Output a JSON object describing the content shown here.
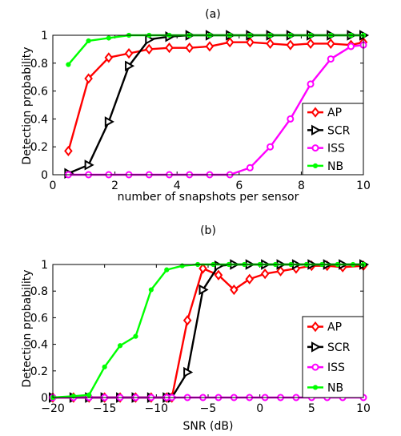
{
  "chart_data": [
    {
      "type": "line",
      "title": "(a)",
      "xlabel": "number of snapshots per sensor",
      "ylabel": "Detection probability",
      "xlim": [
        0,
        10
      ],
      "ylim": [
        0,
        1
      ],
      "xticks": [
        0,
        2,
        4,
        6,
        8,
        10
      ],
      "yticks": [
        0,
        0.2,
        0.4,
        0.6,
        0.8,
        1
      ],
      "xtick_labels": [
        "0",
        "2",
        "4",
        "6",
        "8",
        "10"
      ],
      "ytick_labels": [
        "0",
        "0.2",
        "0.4",
        "0.6",
        "0.8",
        "1"
      ],
      "legend_position": "right",
      "series": [
        {
          "name": "AP",
          "color": "#ff0000",
          "marker": "diamond",
          "x": [
            0.5,
            1.15,
            1.8,
            2.45,
            3.1,
            3.75,
            4.4,
            5.05,
            5.7,
            6.35,
            7.0,
            7.65,
            8.3,
            8.95,
            9.6,
            10
          ],
          "y": [
            0.17,
            0.69,
            0.84,
            0.87,
            0.9,
            0.91,
            0.91,
            0.92,
            0.95,
            0.95,
            0.94,
            0.93,
            0.94,
            0.94,
            0.93,
            0.95
          ]
        },
        {
          "name": "SCR",
          "color": "#000000",
          "marker": "triangle-right",
          "x": [
            0.5,
            1.15,
            1.8,
            2.45,
            3.1,
            3.75,
            4.4,
            5.05,
            5.7,
            6.35,
            7.0,
            7.65,
            8.3,
            8.95,
            9.6,
            10
          ],
          "y": [
            0.01,
            0.07,
            0.38,
            0.78,
            0.97,
            0.99,
            1,
            1,
            1,
            1,
            1,
            1,
            1,
            1,
            1,
            1
          ]
        },
        {
          "name": "ISS",
          "color": "#ff00ff",
          "marker": "circle",
          "x": [
            0.5,
            1.15,
            1.8,
            2.45,
            3.1,
            3.75,
            4.4,
            5.05,
            5.7,
            6.35,
            7.0,
            7.65,
            8.3,
            8.95,
            9.6,
            10
          ],
          "y": [
            0,
            0,
            0,
            0,
            0,
            0,
            0,
            0,
            0,
            0.05,
            0.2,
            0.4,
            0.65,
            0.83,
            0.92,
            0.93
          ]
        },
        {
          "name": "NB",
          "color": "#00ff00",
          "marker": "dot",
          "x": [
            0.5,
            1.15,
            1.8,
            2.45,
            3.1,
            3.75,
            4.4,
            5.05,
            5.7,
            6.35,
            7.0,
            7.65,
            8.3,
            8.95,
            9.6,
            10
          ],
          "y": [
            0.79,
            0.96,
            0.98,
            1,
            1,
            1,
            1,
            1,
            1,
            1,
            1,
            1,
            1,
            1,
            1,
            1
          ]
        }
      ]
    },
    {
      "type": "line",
      "title": "(b)",
      "xlabel": "SNR (dB)",
      "ylabel": "Detection probability",
      "xlim": [
        -20,
        10
      ],
      "ylim": [
        0,
        1
      ],
      "xticks": [
        -20,
        -15,
        -10,
        -5,
        0,
        5,
        10
      ],
      "yticks": [
        0,
        0.2,
        0.4,
        0.6,
        0.8,
        1
      ],
      "xtick_labels": [
        "−20",
        "−15",
        "−10",
        "−5",
        "0",
        "5",
        "10"
      ],
      "ytick_labels": [
        "0",
        "0.2",
        "0.4",
        "0.6",
        "0.8",
        "1"
      ],
      "legend_position": "bottom-right",
      "series": [
        {
          "name": "AP",
          "color": "#ff0000",
          "marker": "diamond",
          "x": [
            -20,
            -18,
            -16.5,
            -15,
            -13.5,
            -12,
            -10.5,
            -9,
            -8.5,
            -7,
            -5.5,
            -4,
            -2.5,
            -1,
            0.5,
            2,
            3.5,
            5,
            6.5,
            8,
            10
          ],
          "y": [
            0,
            0,
            0,
            0,
            0,
            0,
            0,
            0,
            0,
            0.58,
            0.97,
            0.92,
            0.81,
            0.89,
            0.93,
            0.95,
            0.97,
            0.99,
            0.99,
            0.98,
            0.99
          ]
        },
        {
          "name": "SCR",
          "color": "#000000",
          "marker": "triangle-right",
          "x": [
            -20,
            -18,
            -16.5,
            -15,
            -13.5,
            -12,
            -10.5,
            -9,
            -8.5,
            -7,
            -5.5,
            -4,
            -2.5,
            -1,
            0.5,
            2,
            3.5,
            5,
            6.5,
            8,
            10
          ],
          "y": [
            0,
            0,
            0,
            0,
            0,
            0,
            0,
            0,
            0,
            0.19,
            0.81,
            0.99,
            1,
            1,
            1,
            1,
            1,
            1,
            1,
            1,
            1
          ]
        },
        {
          "name": "ISS",
          "color": "#ff00ff",
          "marker": "circle",
          "x": [
            -20,
            -18,
            -16.5,
            -15,
            -13.5,
            -12,
            -10.5,
            -9,
            -8.5,
            -7,
            -5.5,
            -4,
            -2.5,
            -1,
            0.5,
            2,
            3.5,
            5,
            6.5,
            8,
            10
          ],
          "y": [
            0,
            0,
            0,
            0,
            0,
            0,
            0,
            0,
            0,
            0,
            0,
            0,
            0,
            0,
            0,
            0,
            0,
            0,
            0,
            0,
            0
          ]
        },
        {
          "name": "NB",
          "color": "#00ff00",
          "marker": "dot",
          "x": [
            -20,
            -18,
            -16.5,
            -15,
            -13.5,
            -12,
            -10.5,
            -9,
            -7.5,
            -6,
            -4.5,
            -3,
            -1.5,
            0,
            1.5,
            3,
            4.5,
            6,
            7.5,
            9,
            10
          ],
          "y": [
            0,
            0.01,
            0.02,
            0.23,
            0.39,
            0.46,
            0.81,
            0.96,
            0.99,
            1,
            1,
            1,
            1,
            1,
            1,
            1,
            1,
            1,
            1,
            1,
            1
          ]
        }
      ]
    }
  ]
}
